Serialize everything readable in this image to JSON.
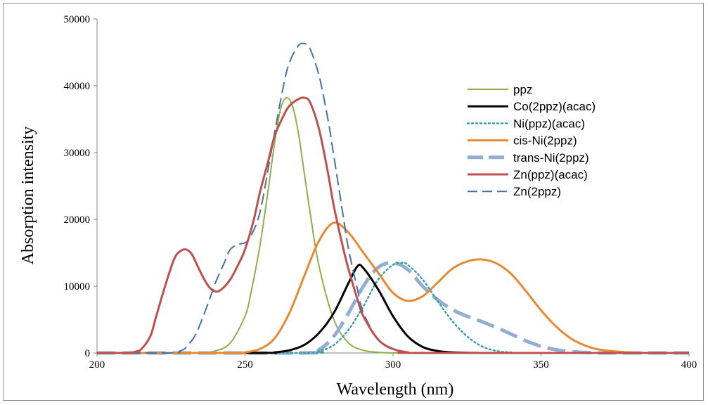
{
  "chart_data": {
    "type": "line",
    "title": "",
    "xlabel": "Wavelength (nm)",
    "ylabel": "Absorption  intensity",
    "xlim": [
      200,
      400
    ],
    "ylim": [
      0,
      50000
    ],
    "xticks": [
      200,
      250,
      300,
      350,
      400
    ],
    "yticks": [
      0,
      10000,
      20000,
      30000,
      40000,
      50000
    ],
    "grid": false,
    "legend_position": "top-right",
    "series": [
      {
        "name": "ppz",
        "color": "#8eb04a",
        "style": "solid",
        "width": 2,
        "x": [
          200,
          230,
          235,
          240,
          245,
          250,
          252,
          255,
          258,
          260,
          262,
          264,
          266,
          268,
          270,
          272,
          275,
          280,
          285,
          290,
          295,
          300,
          305,
          310,
          400
        ],
        "y": [
          0,
          0,
          50,
          300,
          1500,
          5500,
          9000,
          16000,
          25000,
          31500,
          36500,
          38200,
          37000,
          33000,
          27000,
          21000,
          13000,
          5000,
          1500,
          400,
          100,
          0,
          0,
          0,
          0
        ]
      },
      {
        "name": "Co(2ppz)(acac)",
        "color": "#000000",
        "style": "solid",
        "width": 3,
        "x": [
          200,
          255,
          260,
          265,
          270,
          275,
          280,
          285,
          288,
          290,
          295,
          300,
          305,
          310,
          315,
          320,
          330,
          340,
          400
        ],
        "y": [
          0,
          0,
          100,
          400,
          1200,
          3000,
          6000,
          10500,
          13000,
          12700,
          9500,
          5500,
          2500,
          900,
          300,
          100,
          0,
          0,
          0
        ]
      },
      {
        "name": "Ni(ppz)(acac)",
        "color": "#3aa0a4",
        "style": "dotted",
        "width": 2.5,
        "x": [
          200,
          270,
          275,
          280,
          285,
          290,
          295,
          300,
          303,
          305,
          310,
          315,
          320,
          325,
          330,
          335,
          340,
          345,
          400
        ],
        "y": [
          0,
          0,
          300,
          1200,
          3500,
          7000,
          11000,
          13200,
          13500,
          13200,
          11000,
          7800,
          4800,
          2500,
          1000,
          300,
          100,
          0,
          0
        ]
      },
      {
        "name": "cis-Ni(2ppz)",
        "color": "#e8892f",
        "style": "solid",
        "width": 3,
        "x": [
          200,
          245,
          250,
          255,
          260,
          265,
          270,
          275,
          280,
          285,
          290,
          295,
          300,
          305,
          310,
          315,
          320,
          325,
          330,
          335,
          340,
          345,
          350,
          355,
          360,
          365,
          370,
          380,
          390,
          400
        ],
        "y": [
          0,
          0,
          100,
          600,
          2200,
          6000,
          11500,
          16800,
          19500,
          18000,
          15000,
          12000,
          9000,
          7800,
          8500,
          10500,
          12600,
          13700,
          14000,
          13400,
          11800,
          9200,
          6400,
          4000,
          2200,
          1100,
          500,
          80,
          0,
          0
        ]
      },
      {
        "name": "trans-Ni(2ppz)",
        "color": "#94aed3",
        "style": "dashed-thick",
        "width": 5,
        "x": [
          200,
          270,
          275,
          280,
          285,
          290,
          295,
          300,
          305,
          310,
          315,
          320,
          325,
          330,
          335,
          340,
          345,
          350,
          355,
          360,
          370,
          380,
          400
        ],
        "y": [
          0,
          0,
          500,
          2500,
          6000,
          10000,
          12800,
          13500,
          12500,
          10000,
          8000,
          6500,
          5500,
          4700,
          3800,
          2800,
          1800,
          1000,
          500,
          200,
          0,
          0,
          0
        ]
      },
      {
        "name": "Zn(ppz)(acac)",
        "color": "#c0504d",
        "style": "solid",
        "width": 3,
        "x": [
          200,
          210,
          213,
          215,
          218,
          220,
          223,
          226,
          228,
          230,
          232,
          234,
          236,
          238,
          240,
          242,
          245,
          248,
          250,
          253,
          255,
          258,
          260,
          263,
          265,
          268,
          270,
          272,
          275,
          278,
          280,
          283,
          285,
          288,
          290,
          295,
          300,
          305,
          310,
          400
        ],
        "y": [
          0,
          0,
          200,
          600,
          2500,
          5500,
          10000,
          14000,
          15200,
          15500,
          14800,
          13000,
          11200,
          9800,
          9200,
          9500,
          11000,
          13500,
          15500,
          20000,
          24000,
          29000,
          32500,
          35500,
          37000,
          38000,
          38200,
          37500,
          33500,
          27000,
          22000,
          16000,
          12500,
          8000,
          5500,
          2000,
          600,
          100,
          0,
          0
        ]
      },
      {
        "name": "Zn(2ppz)",
        "color": "#4472a8",
        "style": "dashed",
        "width": 2,
        "x": [
          200,
          225,
          228,
          230,
          233,
          235,
          238,
          240,
          243,
          245,
          248,
          250,
          252,
          255,
          258,
          260,
          263,
          265,
          268,
          270,
          272,
          275,
          278,
          280,
          283,
          285,
          288,
          290,
          295,
          300,
          305,
          310,
          400
        ],
        "y": [
          0,
          0,
          300,
          800,
          2500,
          4500,
          8000,
          10500,
          13500,
          15500,
          16300,
          16500,
          17500,
          21000,
          28000,
          33000,
          40000,
          43500,
          46000,
          46300,
          45500,
          41500,
          35000,
          29500,
          21000,
          15500,
          9500,
          6000,
          2000,
          500,
          100,
          0,
          0
        ]
      }
    ]
  }
}
